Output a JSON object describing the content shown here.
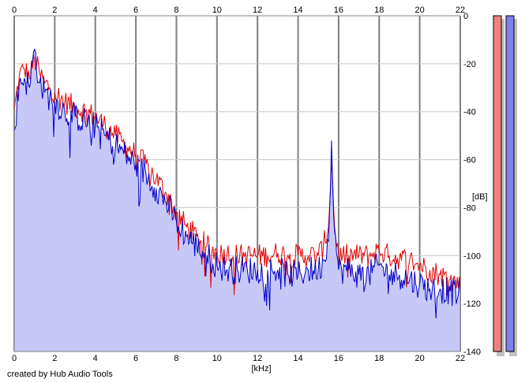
{
  "chart_data": {
    "type": "area",
    "xlabel": "[kHz]",
    "ylabel": "[dB]",
    "xlim": [
      0,
      22
    ],
    "ylim": [
      -140,
      0
    ],
    "x_ticks": [
      0,
      2,
      4,
      6,
      8,
      10,
      12,
      14,
      16,
      18,
      20,
      22
    ],
    "y_ticks": [
      0,
      -20,
      -40,
      -60,
      -80,
      -100,
      -120,
      -140
    ],
    "x_tick_labels": [
      "0",
      "2",
      "4",
      "6",
      "8",
      "10",
      "12",
      "14",
      "16",
      "18",
      "20",
      "22"
    ],
    "y_tick_labels": [
      "0",
      "-20",
      "-40",
      "-60",
      "-80",
      "-100",
      "-120",
      "-140"
    ],
    "grid": true,
    "series": [
      {
        "color": "#e00000",
        "x": [
          0,
          0.25,
          0.5,
          0.75,
          1,
          1.25,
          1.5,
          1.75,
          2,
          2.5,
          3,
          3.5,
          4,
          4.5,
          5,
          5.5,
          6,
          6.5,
          7,
          7.5,
          8,
          8.5,
          9,
          9.5,
          10,
          10.5,
          11,
          11.5,
          12,
          12.5,
          13,
          13.5,
          14,
          14.5,
          15,
          15.25,
          15.5,
          15.65,
          15.8,
          16,
          16.5,
          17,
          17.5,
          18,
          18.5,
          19,
          19.5,
          20,
          20.5,
          21,
          21.5,
          22
        ],
        "values": [
          -40,
          -25,
          -22,
          -26,
          -18,
          -24,
          -28,
          -30,
          -32,
          -36,
          -38,
          -40,
          -42,
          -46,
          -50,
          -54,
          -58,
          -62,
          -68,
          -74,
          -82,
          -88,
          -92,
          -96,
          -99,
          -99,
          -100,
          -100,
          -100,
          -100,
          -99,
          -100,
          -100,
          -100,
          -100,
          -96,
          -88,
          -60,
          -88,
          -100,
          -100,
          -100,
          -100,
          -98,
          -100,
          -101,
          -102,
          -104,
          -106,
          -108,
          -110,
          -112
        ]
      },
      {
        "color": "#0000c8",
        "x": [
          0,
          0.25,
          0.5,
          0.75,
          1,
          1.25,
          1.5,
          1.75,
          2,
          2.5,
          3,
          3.5,
          4,
          4.5,
          5,
          5.5,
          6,
          6.5,
          7,
          7.5,
          8,
          8.5,
          9,
          9.5,
          10,
          10.5,
          11,
          11.5,
          12,
          12.5,
          13,
          13.5,
          14,
          14.5,
          15,
          15.25,
          15.5,
          15.65,
          15.8,
          16,
          16.5,
          17,
          17.5,
          18,
          18.5,
          19,
          19.5,
          20,
          20.5,
          21,
          21.5,
          22
        ],
        "values": [
          -48,
          -28,
          -26,
          -30,
          -14,
          -28,
          -32,
          -34,
          -36,
          -40,
          -42,
          -44,
          -46,
          -50,
          -54,
          -58,
          -62,
          -66,
          -72,
          -78,
          -86,
          -92,
          -96,
          -100,
          -104,
          -106,
          -106,
          -106,
          -106,
          -106,
          -106,
          -108,
          -108,
          -106,
          -106,
          -102,
          -94,
          -52,
          -90,
          -106,
          -106,
          -108,
          -108,
          -104,
          -108,
          -108,
          -110,
          -112,
          -114,
          -114,
          -115,
          -116
        ]
      }
    ]
  },
  "meters": {
    "left_color": "#f08080",
    "right_color": "#8080f0"
  },
  "footer": {
    "credit": "created by Hub Audio Tools"
  }
}
